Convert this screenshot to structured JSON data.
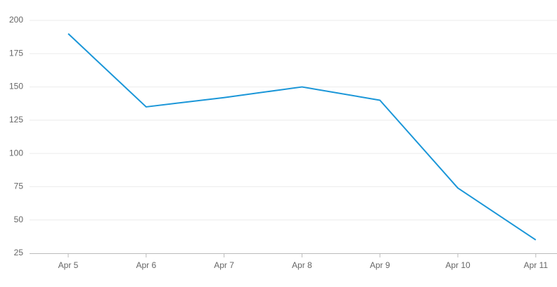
{
  "chart_data": {
    "type": "line",
    "categories": [
      "Apr 5",
      "Apr 6",
      "Apr 7",
      "Apr 8",
      "Apr 9",
      "Apr 10",
      "Apr 11"
    ],
    "series": [
      {
        "color": "#1a96d8",
        "values": [
          190,
          135,
          142,
          150,
          140,
          74,
          35
        ]
      }
    ],
    "ylim": [
      25,
      200
    ],
    "yticks": [
      25,
      50,
      75,
      100,
      125,
      150,
      175,
      200
    ],
    "grid": true
  }
}
